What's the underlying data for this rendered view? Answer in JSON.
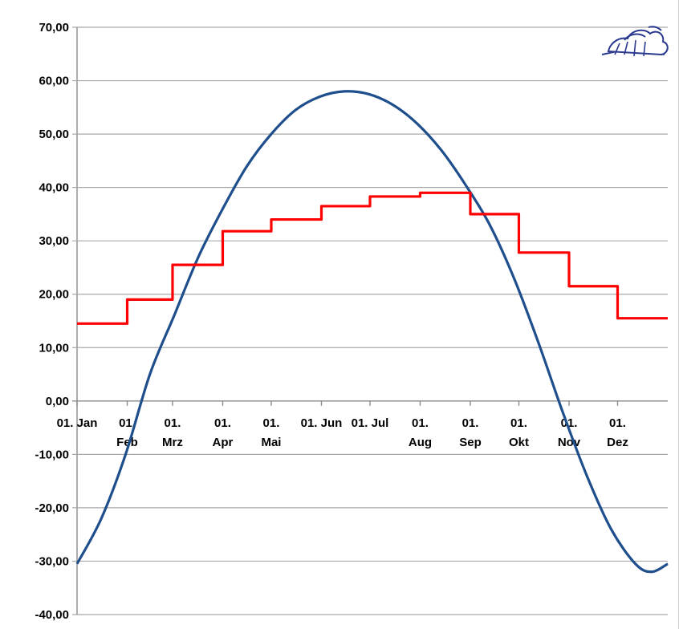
{
  "chart_data": {
    "type": "line",
    "ylim": [
      -40,
      70
    ],
    "yticks": [
      70,
      60,
      50,
      40,
      30,
      20,
      10,
      0,
      -10,
      -20,
      -30,
      -40
    ],
    "ytick_labels": [
      "70,00",
      "60,00",
      "50,00",
      "40,00",
      "30,00",
      "20,00",
      "10,00",
      "0,00",
      "-10,00",
      "-20,00",
      "-30,00",
      "-40,00"
    ],
    "xlim": [
      0,
      365
    ],
    "x_categories": [
      {
        "day": 0,
        "lines": [
          "01. Jan"
        ]
      },
      {
        "day": 31,
        "lines": [
          "01.",
          "Feb"
        ]
      },
      {
        "day": 59,
        "lines": [
          "01.",
          "Mrz"
        ]
      },
      {
        "day": 90,
        "lines": [
          "01.",
          "Apr"
        ]
      },
      {
        "day": 120,
        "lines": [
          "01.",
          "Mai"
        ]
      },
      {
        "day": 151,
        "lines": [
          "01. Jun"
        ]
      },
      {
        "day": 181,
        "lines": [
          "01. Jul"
        ]
      },
      {
        "day": 212,
        "lines": [
          "01.",
          "Aug"
        ]
      },
      {
        "day": 243,
        "lines": [
          "01.",
          "Sep"
        ]
      },
      {
        "day": 273,
        "lines": [
          "01.",
          "Okt"
        ]
      },
      {
        "day": 304,
        "lines": [
          "01.",
          "Nov"
        ]
      },
      {
        "day": 334,
        "lines": [
          "01.",
          "Dez"
        ]
      }
    ],
    "grid": true,
    "series": [
      {
        "color": "#1f4e8c",
        "style": "smooth",
        "points": [
          [
            0,
            -30.5
          ],
          [
            15,
            -22
          ],
          [
            30,
            -10
          ],
          [
            45,
            5
          ],
          [
            60,
            16
          ],
          [
            75,
            27
          ],
          [
            90,
            36
          ],
          [
            105,
            44
          ],
          [
            120,
            50
          ],
          [
            135,
            54.5
          ],
          [
            150,
            57
          ],
          [
            165,
            58
          ],
          [
            180,
            57.5
          ],
          [
            195,
            55.5
          ],
          [
            210,
            52
          ],
          [
            225,
            47
          ],
          [
            240,
            40.5
          ],
          [
            255,
            33
          ],
          [
            270,
            23
          ],
          [
            285,
            11
          ],
          [
            300,
            -2
          ],
          [
            315,
            -14
          ],
          [
            330,
            -24
          ],
          [
            345,
            -30.5
          ],
          [
            355,
            -32
          ],
          [
            365,
            -30.5
          ]
        ]
      },
      {
        "color": "#ff0000",
        "style": "step",
        "steps": [
          [
            0,
            14.5
          ],
          [
            31,
            19
          ],
          [
            59,
            25.5
          ],
          [
            90,
            31.8
          ],
          [
            120,
            34
          ],
          [
            151,
            36.5
          ],
          [
            181,
            38.3
          ],
          [
            212,
            39
          ],
          [
            243,
            35
          ],
          [
            273,
            27.8
          ],
          [
            304,
            21.5
          ],
          [
            334,
            15.5
          ],
          [
            365,
            15.5
          ]
        ]
      }
    ]
  },
  "logo": {
    "name": "cloud-sun-logo-icon",
    "color": "#2b3a8f"
  }
}
